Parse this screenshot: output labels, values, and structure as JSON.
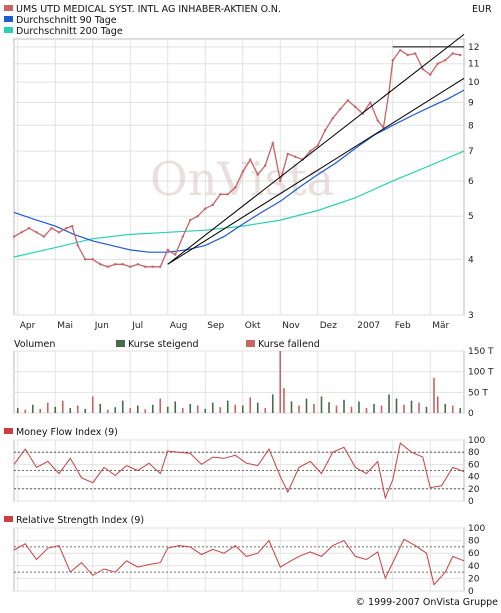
{
  "header": {
    "stock_title": "UMS UTD MEDICAL SYST. INTL AG INHABER-AKTIEN O.N.",
    "currency": "EUR"
  },
  "legend": [
    {
      "label": "UMS UTD MEDICAL SYST. INTL AG INHABER-AKTIEN O.N.",
      "color": "#c86464"
    },
    {
      "label": "Durchschnitt 90 Tage",
      "color": "#1e5ad2"
    },
    {
      "label": "Durchschnitt 200 Tage",
      "color": "#28d2b4"
    }
  ],
  "watermark": "OnVista",
  "copyright": "© 1999-2007 OnVista Gruppe",
  "colors": {
    "price": "#c86464",
    "ma90": "#1e5ad2",
    "ma200": "#28d2b4",
    "rising": "#4a6a4a",
    "falling": "#c86464",
    "indicator": "#c84040",
    "grid": "#e2e2e2",
    "panel_border": "#bbbbbb"
  },
  "chart_data": [
    {
      "id": "price",
      "type": "line",
      "scale": "log",
      "ylim": [
        3,
        12.5
      ],
      "y_ticks": [
        3,
        4,
        5,
        6,
        7,
        8,
        9,
        10,
        11,
        12
      ],
      "x_tick_labels": [
        "Apr",
        "Mai",
        "Jun",
        "Jul",
        "Aug",
        "Sep",
        "Okt",
        "Nov",
        "Dez",
        "2007",
        "Feb",
        "Mär"
      ],
      "x_months": [
        0,
        1,
        2,
        3,
        4,
        5,
        6,
        7,
        8,
        9,
        10,
        11
      ],
      "xlim": [
        -0.1,
        11.9
      ],
      "series": [
        {
          "name": "UMS UTD MEDICAL SYST. INTL AG INHABER-AKTIEN O.N.",
          "x": [
            -0.1,
            0.1,
            0.3,
            0.5,
            0.7,
            0.9,
            1.1,
            1.3,
            1.45,
            1.6,
            1.8,
            2.0,
            2.2,
            2.4,
            2.6,
            2.8,
            3.0,
            3.2,
            3.4,
            3.6,
            3.8,
            4.0,
            4.2,
            4.4,
            4.6,
            4.8,
            5.0,
            5.2,
            5.4,
            5.6,
            5.8,
            6.0,
            6.2,
            6.4,
            6.6,
            6.8,
            7.0,
            7.2,
            7.4,
            7.6,
            7.8,
            8.0,
            8.2,
            8.4,
            8.6,
            8.8,
            9.0,
            9.2,
            9.4,
            9.6,
            9.75,
            9.9,
            10.0,
            10.2,
            10.4,
            10.6,
            10.8,
            11.0,
            11.2,
            11.4,
            11.6,
            11.8
          ],
          "values": [
            4.5,
            4.6,
            4.7,
            4.6,
            4.5,
            4.7,
            4.6,
            4.7,
            4.75,
            4.3,
            4.0,
            4.0,
            3.9,
            3.85,
            3.9,
            3.9,
            3.85,
            3.9,
            3.85,
            3.85,
            3.85,
            4.2,
            4.1,
            4.5,
            4.9,
            5.0,
            5.2,
            5.3,
            5.6,
            5.6,
            5.8,
            6.3,
            6.7,
            6.2,
            6.5,
            7.3,
            6.0,
            6.9,
            6.8,
            6.7,
            7.0,
            7.2,
            7.8,
            8.3,
            8.7,
            9.1,
            8.8,
            8.5,
            9.0,
            8.2,
            7.9,
            9.5,
            11.2,
            11.8,
            11.5,
            11.6,
            10.7,
            10.4,
            11.0,
            11.2,
            11.6,
            11.5
          ]
        },
        {
          "name": "Durchschnitt 90 Tage",
          "x": [
            -0.1,
            0.5,
            1.0,
            1.5,
            2.0,
            2.5,
            3.0,
            3.5,
            4.0,
            4.5,
            5.0,
            5.5,
            6.0,
            6.5,
            7.0,
            7.5,
            8.0,
            8.5,
            9.0,
            9.5,
            10.0,
            10.5,
            11.0,
            11.5,
            11.9
          ],
          "values": [
            5.1,
            4.9,
            4.75,
            4.55,
            4.4,
            4.3,
            4.2,
            4.15,
            4.15,
            4.2,
            4.3,
            4.5,
            4.8,
            5.1,
            5.4,
            5.8,
            6.2,
            6.6,
            7.1,
            7.6,
            8.0,
            8.4,
            8.8,
            9.2,
            9.6
          ]
        },
        {
          "name": "Durchschnitt 200 Tage",
          "x": [
            -0.1,
            1.0,
            2.0,
            3.0,
            4.0,
            5.0,
            6.0,
            7.0,
            8.0,
            9.0,
            10.0,
            11.0,
            11.9
          ],
          "values": [
            4.05,
            4.25,
            4.45,
            4.55,
            4.6,
            4.65,
            4.75,
            4.9,
            5.15,
            5.5,
            6.0,
            6.5,
            7.0
          ]
        }
      ],
      "trendlines": [
        {
          "x": [
            4.0,
            11.9
          ],
          "values": [
            3.9,
            12.8
          ]
        },
        {
          "x": [
            4.0,
            11.9
          ],
          "values": [
            3.9,
            10.2
          ]
        },
        {
          "x": [
            10.0,
            11.9
          ],
          "values": [
            12.0,
            12.0
          ]
        }
      ]
    },
    {
      "id": "volume",
      "type": "bar",
      "title": "Volumen",
      "legend": [
        "Kurse steigend",
        "Kurse fallend"
      ],
      "ylim": [
        0,
        150
      ],
      "y_tick_labels": [
        "150 T",
        "100 T",
        "50 T",
        "0"
      ],
      "y_tick_values": [
        150,
        100,
        50,
        0
      ],
      "bars": [
        {
          "x": 0.0,
          "value": 12,
          "dir": "up"
        },
        {
          "x": 0.2,
          "value": 8,
          "dir": "down"
        },
        {
          "x": 0.4,
          "value": 20,
          "dir": "up"
        },
        {
          "x": 0.6,
          "value": 10,
          "dir": "down"
        },
        {
          "x": 0.8,
          "value": 25,
          "dir": "down"
        },
        {
          "x": 1.0,
          "value": 15,
          "dir": "up"
        },
        {
          "x": 1.2,
          "value": 30,
          "dir": "down"
        },
        {
          "x": 1.4,
          "value": 12,
          "dir": "up"
        },
        {
          "x": 1.6,
          "value": 18,
          "dir": "down"
        },
        {
          "x": 1.8,
          "value": 10,
          "dir": "up"
        },
        {
          "x": 2.0,
          "value": 40,
          "dir": "down"
        },
        {
          "x": 2.2,
          "value": 22,
          "dir": "up"
        },
        {
          "x": 2.4,
          "value": 8,
          "dir": "down"
        },
        {
          "x": 2.6,
          "value": 14,
          "dir": "up"
        },
        {
          "x": 2.8,
          "value": 30,
          "dir": "up"
        },
        {
          "x": 3.0,
          "value": 12,
          "dir": "down"
        },
        {
          "x": 3.2,
          "value": 18,
          "dir": "up"
        },
        {
          "x": 3.4,
          "value": 9,
          "dir": "down"
        },
        {
          "x": 3.6,
          "value": 20,
          "dir": "up"
        },
        {
          "x": 3.8,
          "value": 35,
          "dir": "down"
        },
        {
          "x": 4.0,
          "value": 15,
          "dir": "up"
        },
        {
          "x": 4.2,
          "value": 28,
          "dir": "up"
        },
        {
          "x": 4.4,
          "value": 12,
          "dir": "down"
        },
        {
          "x": 4.6,
          "value": 22,
          "dir": "up"
        },
        {
          "x": 4.8,
          "value": 18,
          "dir": "down"
        },
        {
          "x": 5.0,
          "value": 10,
          "dir": "up"
        },
        {
          "x": 5.2,
          "value": 25,
          "dir": "up"
        },
        {
          "x": 5.4,
          "value": 14,
          "dir": "down"
        },
        {
          "x": 5.6,
          "value": 30,
          "dir": "up"
        },
        {
          "x": 5.8,
          "value": 20,
          "dir": "down"
        },
        {
          "x": 6.0,
          "value": 18,
          "dir": "up"
        },
        {
          "x": 6.2,
          "value": 38,
          "dir": "down"
        },
        {
          "x": 6.4,
          "value": 25,
          "dir": "up"
        },
        {
          "x": 6.6,
          "value": 12,
          "dir": "down"
        },
        {
          "x": 6.8,
          "value": 45,
          "dir": "up"
        },
        {
          "x": 7.0,
          "value": 150,
          "dir": "down"
        },
        {
          "x": 7.1,
          "value": 60,
          "dir": "down"
        },
        {
          "x": 7.3,
          "value": 28,
          "dir": "up"
        },
        {
          "x": 7.5,
          "value": 18,
          "dir": "down"
        },
        {
          "x": 7.7,
          "value": 35,
          "dir": "up"
        },
        {
          "x": 7.9,
          "value": 22,
          "dir": "down"
        },
        {
          "x": 8.1,
          "value": 40,
          "dir": "up"
        },
        {
          "x": 8.3,
          "value": 26,
          "dir": "up"
        },
        {
          "x": 8.5,
          "value": 18,
          "dir": "down"
        },
        {
          "x": 8.7,
          "value": 32,
          "dir": "up"
        },
        {
          "x": 8.9,
          "value": 15,
          "dir": "down"
        },
        {
          "x": 9.1,
          "value": 28,
          "dir": "up"
        },
        {
          "x": 9.3,
          "value": 12,
          "dir": "down"
        },
        {
          "x": 9.5,
          "value": 22,
          "dir": "up"
        },
        {
          "x": 9.7,
          "value": 18,
          "dir": "down"
        },
        {
          "x": 9.9,
          "value": 45,
          "dir": "up"
        },
        {
          "x": 10.1,
          "value": 35,
          "dir": "up"
        },
        {
          "x": 10.3,
          "value": 20,
          "dir": "down"
        },
        {
          "x": 10.5,
          "value": 30,
          "dir": "up"
        },
        {
          "x": 10.7,
          "value": 25,
          "dir": "down"
        },
        {
          "x": 10.9,
          "value": 15,
          "dir": "up"
        },
        {
          "x": 11.1,
          "value": 85,
          "dir": "down"
        },
        {
          "x": 11.2,
          "value": 40,
          "dir": "down"
        },
        {
          "x": 11.4,
          "value": 22,
          "dir": "up"
        },
        {
          "x": 11.6,
          "value": 18,
          "dir": "down"
        },
        {
          "x": 11.8,
          "value": 12,
          "dir": "up"
        }
      ]
    },
    {
      "id": "mfi",
      "type": "line",
      "title": "Money Flow Index (9)",
      "ylim": [
        0,
        100
      ],
      "y_ticks": [
        0,
        20,
        40,
        60,
        80,
        100
      ],
      "reference_lines": [
        80,
        50,
        20
      ],
      "x": [
        -0.1,
        0.2,
        0.5,
        0.8,
        1.1,
        1.4,
        1.7,
        2.0,
        2.3,
        2.6,
        2.9,
        3.2,
        3.5,
        3.8,
        4.0,
        4.3,
        4.6,
        4.9,
        5.2,
        5.5,
        5.8,
        6.1,
        6.4,
        6.7,
        7.0,
        7.2,
        7.5,
        7.8,
        8.1,
        8.4,
        8.7,
        9.0,
        9.3,
        9.6,
        9.8,
        10.0,
        10.2,
        10.5,
        10.8,
        11.0,
        11.3,
        11.6,
        11.9
      ],
      "values": [
        60,
        85,
        55,
        65,
        45,
        70,
        38,
        30,
        55,
        42,
        58,
        50,
        62,
        45,
        82,
        80,
        78,
        60,
        72,
        70,
        75,
        62,
        58,
        85,
        40,
        15,
        55,
        65,
        45,
        80,
        88,
        55,
        45,
        65,
        5,
        35,
        95,
        80,
        72,
        22,
        25,
        55,
        48
      ]
    },
    {
      "id": "rsi",
      "type": "line",
      "title": "Relative Strength Index (9)",
      "ylim": [
        0,
        100
      ],
      "y_ticks": [
        0,
        20,
        40,
        60,
        80,
        100
      ],
      "reference_lines": [
        70,
        30
      ],
      "x": [
        -0.1,
        0.2,
        0.5,
        0.8,
        1.1,
        1.4,
        1.7,
        2.0,
        2.3,
        2.6,
        2.9,
        3.2,
        3.5,
        3.8,
        4.0,
        4.3,
        4.6,
        4.9,
        5.2,
        5.5,
        5.8,
        6.1,
        6.4,
        6.7,
        7.0,
        7.2,
        7.5,
        7.8,
        8.1,
        8.4,
        8.7,
        9.0,
        9.3,
        9.6,
        9.8,
        10.0,
        10.3,
        10.6,
        10.9,
        11.1,
        11.4,
        11.6,
        11.9
      ],
      "values": [
        65,
        75,
        50,
        68,
        72,
        30,
        45,
        25,
        35,
        30,
        48,
        38,
        42,
        45,
        68,
        72,
        70,
        58,
        66,
        60,
        72,
        55,
        60,
        80,
        38,
        45,
        55,
        62,
        55,
        72,
        80,
        55,
        50,
        62,
        20,
        45,
        82,
        72,
        60,
        10,
        30,
        55,
        48
      ]
    }
  ]
}
